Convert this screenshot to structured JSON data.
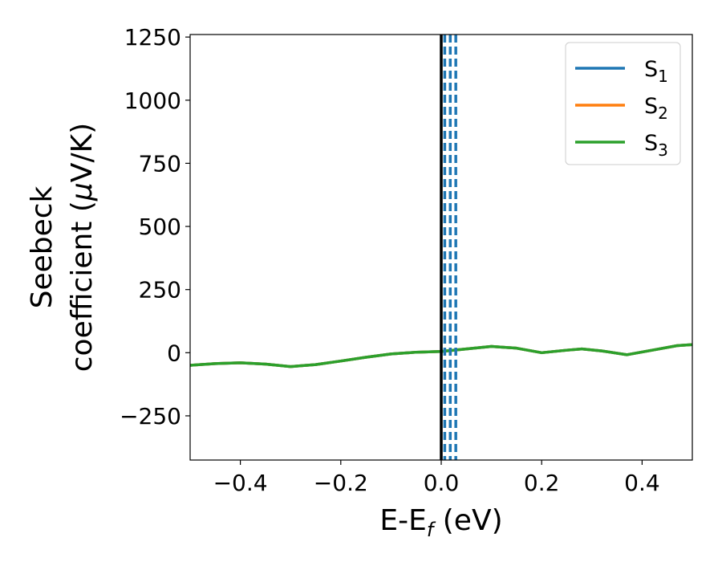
{
  "chart_data": {
    "type": "line",
    "xlabel": {
      "main": "E-E",
      "sub": "f",
      "tail": " (eV)"
    },
    "ylabel": {
      "line1": "Seebeck",
      "line2_main": "coefficient  (",
      "line2_mu": "μ",
      "line2_tail": "V/K)"
    },
    "xlim": [
      -0.5,
      0.5
    ],
    "ylim": [
      -425,
      1260
    ],
    "x_ticks": [
      -0.4,
      -0.2,
      0.0,
      0.2,
      0.4
    ],
    "x_tick_labels": [
      "−0.4",
      "−0.2",
      "0.0",
      "0.2",
      "0.4"
    ],
    "y_ticks": [
      -250,
      0,
      250,
      500,
      750,
      1000,
      1250
    ],
    "y_tick_labels": [
      "−250",
      "0",
      "250",
      "500",
      "750",
      "1000",
      "1250"
    ],
    "grid": false,
    "legend_position": "top-right",
    "x": [
      -0.5,
      -0.45,
      -0.4,
      -0.35,
      -0.3,
      -0.25,
      -0.2,
      -0.15,
      -0.1,
      -0.05,
      0.0,
      0.05,
      0.1,
      0.15,
      0.2,
      0.25,
      0.28,
      0.32,
      0.37,
      0.42,
      0.47,
      0.5
    ],
    "series": [
      {
        "name_main": "S",
        "name_sub": "1",
        "color": "#1f77b4",
        "values": [
          -50,
          -43,
          -40,
          -45,
          -55,
          -47,
          -33,
          -18,
          -5,
          2,
          5,
          15,
          25,
          18,
          0,
          10,
          15,
          7,
          -8,
          10,
          28,
          32
        ]
      },
      {
        "name_main": "S",
        "name_sub": "2",
        "color": "#ff7f0e",
        "values": [
          -50,
          -43,
          -40,
          -45,
          -55,
          -47,
          -33,
          -18,
          -5,
          2,
          5,
          15,
          25,
          18,
          0,
          10,
          15,
          7,
          -8,
          10,
          28,
          32
        ]
      },
      {
        "name_main": "S",
        "name_sub": "3",
        "color": "#2ca02c",
        "values": [
          -50,
          -43,
          -40,
          -45,
          -55,
          -47,
          -33,
          -18,
          -5,
          2,
          5,
          15,
          25,
          18,
          0,
          10,
          15,
          7,
          -8,
          10,
          28,
          32
        ]
      }
    ],
    "fermi_line": {
      "x": 0.0,
      "color": "#000000"
    },
    "dashed_lines": {
      "x": [
        0.007,
        0.018,
        0.029
      ],
      "color": "#1f77b4"
    }
  }
}
